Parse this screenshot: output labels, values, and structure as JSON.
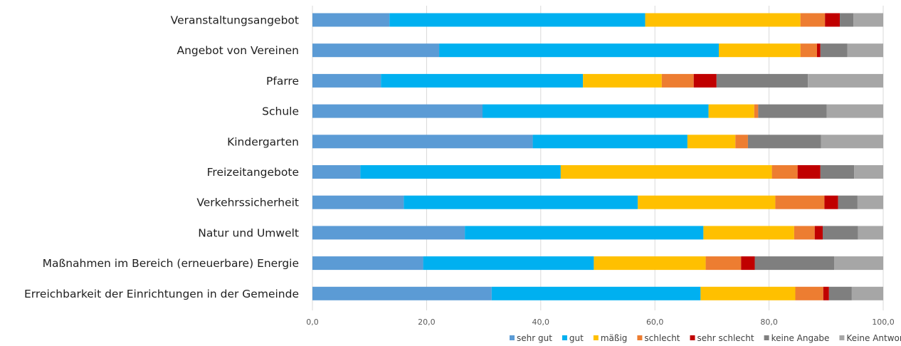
{
  "chart_data": {
    "type": "bar",
    "orientation": "horizontal",
    "stacked": true,
    "categories": [
      "Veranstaltungsangebot",
      "Angebot von Vereinen",
      "Pfarre",
      "Schule",
      "Kindergarten",
      "Freizeitangebote",
      "Verkehrssicherheit",
      "Natur und Umwelt",
      "Maßnahmen im Bereich (erneuerbare) Energie",
      "Erreichbarkeit der Einrichtungen in der Gemeinde"
    ],
    "series": [
      {
        "name": "sehr gut",
        "color": "#5b9bd5",
        "values": [
          13.5,
          22.2,
          12.0,
          29.8,
          38.6,
          8.4,
          16.0,
          26.7,
          19.4,
          31.4
        ]
      },
      {
        "name": "gut",
        "color": "#00b0f0",
        "values": [
          44.8,
          49.0,
          35.4,
          39.6,
          27.1,
          35.1,
          41.0,
          41.8,
          29.9,
          36.6
        ]
      },
      {
        "name": "mäßig",
        "color": "#ffc000",
        "values": [
          27.2,
          14.3,
          13.8,
          8.0,
          8.4,
          37.0,
          24.1,
          15.9,
          19.6,
          16.6
        ]
      },
      {
        "name": "schlecht",
        "color": "#ed7d31",
        "values": [
          4.3,
          2.9,
          5.6,
          0.7,
          2.2,
          4.5,
          8.6,
          3.6,
          6.2,
          4.9
        ]
      },
      {
        "name": "sehr schlecht",
        "color": "#c00000",
        "values": [
          2.6,
          0.6,
          4.0,
          0.0,
          0.0,
          4.0,
          2.4,
          1.4,
          2.4,
          1.0
        ]
      },
      {
        "name": "keine Angabe",
        "color": "#7f7f7f",
        "values": [
          2.4,
          4.7,
          16.0,
          12.0,
          12.8,
          5.9,
          3.4,
          6.2,
          13.9,
          4.0
        ]
      },
      {
        "name": "Keine Antwort",
        "color": "#a6a6a6",
        "values": [
          5.2,
          6.3,
          13.2,
          9.9,
          10.9,
          5.1,
          4.5,
          4.4,
          8.6,
          5.5
        ]
      }
    ],
    "xlim": [
      0,
      100
    ],
    "xticks": [
      "0,0",
      "20,0",
      "40,0",
      "60,0",
      "80,0",
      "100,0"
    ],
    "grid": true,
    "legend_position": "bottom-right",
    "title": "",
    "xlabel": "",
    "ylabel": ""
  }
}
